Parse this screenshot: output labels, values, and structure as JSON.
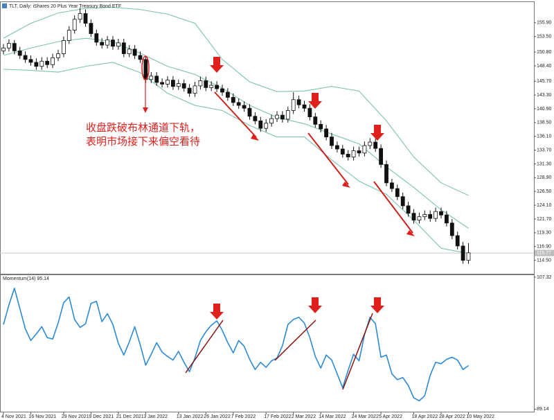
{
  "chart_data": [
    {
      "type": "candlestick",
      "title": "TLT, Daily: iShares 20 Plus Year Treasury Bond ETF",
      "candles": [
        [
          151.0,
          152.2,
          150.4,
          151.5
        ],
        [
          151.5,
          153.0,
          150.9,
          152.3
        ],
        [
          152.3,
          152.9,
          150.4,
          151.0
        ],
        [
          151.0,
          151.7,
          149.6,
          150.2
        ],
        [
          150.2,
          150.9,
          148.9,
          149.5
        ],
        [
          149.5,
          150.2,
          148.4,
          149.0
        ],
        [
          149.0,
          149.7,
          147.7,
          148.3
        ],
        [
          148.3,
          149.9,
          147.7,
          149.2
        ],
        [
          149.2,
          149.9,
          148.0,
          148.6
        ],
        [
          148.6,
          150.5,
          148.0,
          149.8
        ],
        [
          149.8,
          151.2,
          149.2,
          150.5
        ],
        [
          150.5,
          153.5,
          149.9,
          152.8
        ],
        [
          152.8,
          155.3,
          152.2,
          154.6
        ],
        [
          154.6,
          157.2,
          154.0,
          156.5
        ],
        [
          156.5,
          158.5,
          155.9,
          157.5
        ],
        [
          157.5,
          158.2,
          155.2,
          155.8
        ],
        [
          155.8,
          156.5,
          153.4,
          154.0
        ],
        [
          154.0,
          154.7,
          151.9,
          152.5
        ],
        [
          152.5,
          153.2,
          151.4,
          152.0
        ],
        [
          152.0,
          153.6,
          151.4,
          152.9
        ],
        [
          152.9,
          153.6,
          151.2,
          151.8
        ],
        [
          151.8,
          153.1,
          151.2,
          152.4
        ],
        [
          152.4,
          153.1,
          149.9,
          150.5
        ],
        [
          150.5,
          152.0,
          149.9,
          151.3
        ],
        [
          151.3,
          152.0,
          149.6,
          150.2
        ],
        [
          150.2,
          150.9,
          148.9,
          149.5
        ],
        [
          149.5,
          150.0,
          145.4,
          146.0
        ],
        [
          146.0,
          147.3,
          145.4,
          146.6
        ],
        [
          146.6,
          147.3,
          144.9,
          145.5
        ],
        [
          145.5,
          146.2,
          144.6,
          145.2
        ],
        [
          145.2,
          146.6,
          144.6,
          145.9
        ],
        [
          145.9,
          146.6,
          144.2,
          144.8
        ],
        [
          144.8,
          146.0,
          144.2,
          145.3
        ],
        [
          145.3,
          146.0,
          143.9,
          144.5
        ],
        [
          144.5,
          145.2,
          143.0,
          143.6
        ],
        [
          143.6,
          145.6,
          143.0,
          144.9
        ],
        [
          144.9,
          146.5,
          144.3,
          145.8
        ],
        [
          145.8,
          146.5,
          144.0,
          144.6
        ],
        [
          144.6,
          145.7,
          144.0,
          145.0
        ],
        [
          145.0,
          145.7,
          143.8,
          144.4
        ],
        [
          144.4,
          145.1,
          143.2,
          143.8
        ],
        [
          143.8,
          144.5,
          142.3,
          142.9
        ],
        [
          142.9,
          143.6,
          141.4,
          142.0
        ],
        [
          142.0,
          142.7,
          140.9,
          141.5
        ],
        [
          141.5,
          142.2,
          140.4,
          141.0
        ],
        [
          141.0,
          141.7,
          139.0,
          139.6
        ],
        [
          139.6,
          140.3,
          138.2,
          138.8
        ],
        [
          138.8,
          139.5,
          136.9,
          137.5
        ],
        [
          137.5,
          139.1,
          136.9,
          138.4
        ],
        [
          138.4,
          139.9,
          137.8,
          139.2
        ],
        [
          139.2,
          140.5,
          138.6,
          139.8
        ],
        [
          139.8,
          140.5,
          138.5,
          139.1
        ],
        [
          139.1,
          141.3,
          138.5,
          140.6
        ],
        [
          140.6,
          143.8,
          140.0,
          142.5
        ],
        [
          142.5,
          143.2,
          141.0,
          141.6
        ],
        [
          141.6,
          142.3,
          140.4,
          141.0
        ],
        [
          141.0,
          141.7,
          138.9,
          139.5
        ],
        [
          139.5,
          140.2,
          137.6,
          138.2
        ],
        [
          138.2,
          138.9,
          136.8,
          137.4
        ],
        [
          137.4,
          138.1,
          135.4,
          136.0
        ],
        [
          136.0,
          136.7,
          133.9,
          134.5
        ],
        [
          134.5,
          135.2,
          133.3,
          133.9
        ],
        [
          133.9,
          134.6,
          132.4,
          133.0
        ],
        [
          133.0,
          133.7,
          131.9,
          132.5
        ],
        [
          132.5,
          134.3,
          131.9,
          133.6
        ],
        [
          133.6,
          134.3,
          132.6,
          133.2
        ],
        [
          133.2,
          135.2,
          132.6,
          134.5
        ],
        [
          134.5,
          135.8,
          133.9,
          135.1
        ],
        [
          135.1,
          135.8,
          133.4,
          134.0
        ],
        [
          134.0,
          134.7,
          130.6,
          131.2
        ],
        [
          131.2,
          131.9,
          127.4,
          128.0
        ],
        [
          128.0,
          128.7,
          126.4,
          127.0
        ],
        [
          127.0,
          127.7,
          125.0,
          125.6
        ],
        [
          125.6,
          126.3,
          123.4,
          124.0
        ],
        [
          124.0,
          124.7,
          122.1,
          122.7
        ],
        [
          122.7,
          123.4,
          120.9,
          121.5
        ],
        [
          121.5,
          122.8,
          120.9,
          122.1
        ],
        [
          122.1,
          123.2,
          121.5,
          122.5
        ],
        [
          122.5,
          123.2,
          121.2,
          121.8
        ],
        [
          121.8,
          123.7,
          121.2,
          123.0
        ],
        [
          123.0,
          123.7,
          121.8,
          122.4
        ],
        [
          122.4,
          123.1,
          120.4,
          121.0
        ],
        [
          121.0,
          121.7,
          118.2,
          118.8
        ],
        [
          118.8,
          119.5,
          116.4,
          117.0
        ],
        [
          117.0,
          117.7,
          113.9,
          114.5
        ],
        [
          114.5,
          117.5,
          113.9,
          115.8
        ]
      ],
      "bands": {
        "color": "#7cc4a8",
        "x": [
          0,
          5,
          10,
          15,
          20,
          25,
          30,
          35,
          40,
          45,
          50,
          55,
          60,
          65,
          70,
          75,
          80,
          85
        ],
        "upper": [
          153.2,
          155.8,
          157.6,
          158.4,
          158.6,
          158.2,
          157.4,
          155.8,
          149.5,
          145.6,
          143.9,
          144.0,
          144.8,
          144.0,
          138.8,
          132.5,
          128.0,
          125.8
        ],
        "middle": [
          150.2,
          151.5,
          152.6,
          153.2,
          152.6,
          150.6,
          148.3,
          146.9,
          144.5,
          141.5,
          139.4,
          138.3,
          136.5,
          134.8,
          130.8,
          127.2,
          123.3,
          120.1
        ],
        "lower": [
          147.8,
          147.6,
          147.3,
          148.3,
          149.0,
          147.2,
          143.6,
          141.5,
          140.6,
          138.0,
          136.0,
          136.0,
          132.0,
          128.3,
          126.0,
          121.5,
          116.6,
          115.7
        ]
      },
      "last_price": 115.77,
      "ylim": [
        112.4,
        159.5
      ],
      "yticks": [
        {
          "value": 155.9,
          "label": "155.90"
        },
        {
          "value": 153.5,
          "label": "153.50"
        },
        {
          "value": 150.8,
          "label": "150.80"
        },
        {
          "value": 148.4,
          "label": "148.40"
        },
        {
          "value": 145.7,
          "label": "145.70"
        },
        {
          "value": 143.3,
          "label": "143.30"
        },
        {
          "value": 140.9,
          "label": "140.90"
        },
        {
          "value": 138.5,
          "label": "138.50"
        },
        {
          "value": 136.1,
          "label": "136.10"
        },
        {
          "value": 133.7,
          "label": "133.70"
        },
        {
          "value": 131.3,
          "label": "131.30"
        },
        {
          "value": 128.9,
          "label": "128.90"
        },
        {
          "value": 126.5,
          "label": "126.50"
        },
        {
          "value": 124.1,
          "label": "124.10"
        },
        {
          "value": 121.7,
          "label": "121.70"
        },
        {
          "value": 119.3,
          "label": "119.30"
        },
        {
          "value": 116.9,
          "label": "116.90"
        },
        {
          "value": 114.5,
          "label": "114.50"
        }
      ],
      "annotation": [
        "收盘跌破布林通道下轨，",
        "表明市场接下来偏空看待"
      ]
    },
    {
      "type": "line",
      "name": "Momentum(14)",
      "last_value": 95.14,
      "color": "#2b8ad6",
      "values": [
        100.8,
        103.5,
        105.8,
        103.0,
        100.2,
        98.6,
        99.5,
        100.5,
        99.0,
        98.8,
        101.0,
        103.8,
        104.6,
        101.5,
        100.4,
        100.9,
        103.7,
        104.0,
        101.2,
        102.3,
        100.8,
        98.2,
        96.6,
        98.4,
        100.5,
        98.0,
        95.2,
        96.7,
        98.3,
        97.0,
        96.4,
        95.9,
        97.1,
        95.6,
        94.3,
        96.2,
        98.6,
        99.8,
        100.7,
        101.3,
        100.0,
        98.3,
        96.9,
        98.6,
        97.8,
        96.0,
        94.6,
        95.6,
        94.9,
        95.8,
        96.2,
        97.9,
        100.8,
        101.5,
        101.8,
        101.0,
        99.0,
        96.4,
        94.8,
        96.6,
        95.9,
        94.0,
        92.1,
        94.5,
        96.7,
        95.8,
        99.4,
        101.8,
        100.9,
        96.3,
        96.6,
        94.0,
        93.2,
        93.5,
        92.4,
        90.7,
        90.3,
        91.0,
        93.8,
        95.6,
        95.4,
        96.0,
        96.3,
        95.9,
        94.6,
        95.14
      ],
      "categories": [
        "4 Nov 2021",
        null,
        null,
        null,
        null,
        "16 Nov 2021",
        null,
        null,
        null,
        null,
        null,
        "29 Nov 2021",
        null,
        null,
        null,
        null,
        "9 Dec 2021",
        null,
        null,
        null,
        null,
        "21 Dec 2021",
        null,
        null,
        null,
        null,
        "3 Jan 2022",
        null,
        null,
        null,
        null,
        null,
        "13 Jan 2022",
        null,
        null,
        null,
        null,
        "26 Jan 2022",
        null,
        null,
        null,
        null,
        "7 Feb 2022",
        null,
        null,
        null,
        null,
        null,
        "17 Feb 2022",
        null,
        null,
        null,
        null,
        "2 Mar 2022",
        null,
        null,
        null,
        null,
        "14 Mar 2022",
        null,
        null,
        null,
        null,
        null,
        "24 Mar 2022",
        null,
        null,
        null,
        null,
        "5 Apr 2022",
        null,
        null,
        null,
        null,
        null,
        "18 Apr 2022",
        null,
        null,
        null,
        null,
        "28 Apr 2022",
        null,
        null,
        null,
        null,
        "10 May 2022"
      ],
      "ylim": [
        88.7,
        107.6
      ],
      "yticks": [
        107.32,
        89.14
      ]
    }
  ]
}
